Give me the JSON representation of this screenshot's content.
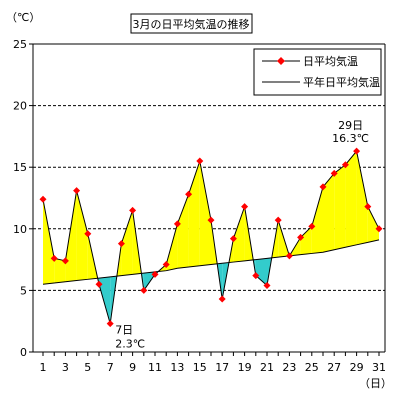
{
  "chart_data": {
    "type": "line",
    "title": "3月の日平均気温の推移",
    "yunit": "（℃）",
    "xunit": "（日）",
    "ylim": [
      0,
      25
    ],
    "yticks": [
      0,
      5,
      10,
      15,
      20,
      25
    ],
    "xlim": [
      1,
      31
    ],
    "xticks": [
      1,
      3,
      5,
      7,
      9,
      11,
      13,
      15,
      17,
      19,
      21,
      23,
      25,
      27,
      29,
      31
    ],
    "grid": "horizontal dashed",
    "legend_position": "top-right",
    "x": [
      1,
      2,
      3,
      4,
      5,
      6,
      7,
      8,
      9,
      10,
      11,
      12,
      13,
      14,
      15,
      16,
      17,
      18,
      19,
      20,
      21,
      22,
      23,
      24,
      25,
      26,
      27,
      28,
      29,
      30,
      31
    ],
    "series": [
      {
        "name": "日平均気温",
        "color": "#ff0000",
        "marker": "diamond",
        "values": [
          12.4,
          7.6,
          7.4,
          13.1,
          9.6,
          5.5,
          2.3,
          8.8,
          11.5,
          5.0,
          6.3,
          7.1,
          10.4,
          12.8,
          15.5,
          10.7,
          4.3,
          9.2,
          11.8,
          6.2,
          5.4,
          10.7,
          7.8,
          9.3,
          10.2,
          13.4,
          14.5,
          15.2,
          16.3,
          11.8,
          10.0
        ]
      },
      {
        "name": "平年日平均気温",
        "color": "#000000",
        "values": [
          5.5,
          5.6,
          5.7,
          5.8,
          5.9,
          6.0,
          6.1,
          6.2,
          6.3,
          6.4,
          6.5,
          6.6,
          6.8,
          6.9,
          7.0,
          7.1,
          7.2,
          7.3,
          7.4,
          7.5,
          7.6,
          7.7,
          7.8,
          7.9,
          8.0,
          8.1,
          8.3,
          8.5,
          8.7,
          8.9,
          9.1
        ]
      }
    ],
    "fill_above_color": "#ffff00",
    "fill_below_color": "#33cccc",
    "annotations": [
      {
        "x": 29,
        "day": "29日",
        "value": "16.3℃"
      },
      {
        "x": 7,
        "day": "7日",
        "value": "2.3℃"
      }
    ]
  }
}
